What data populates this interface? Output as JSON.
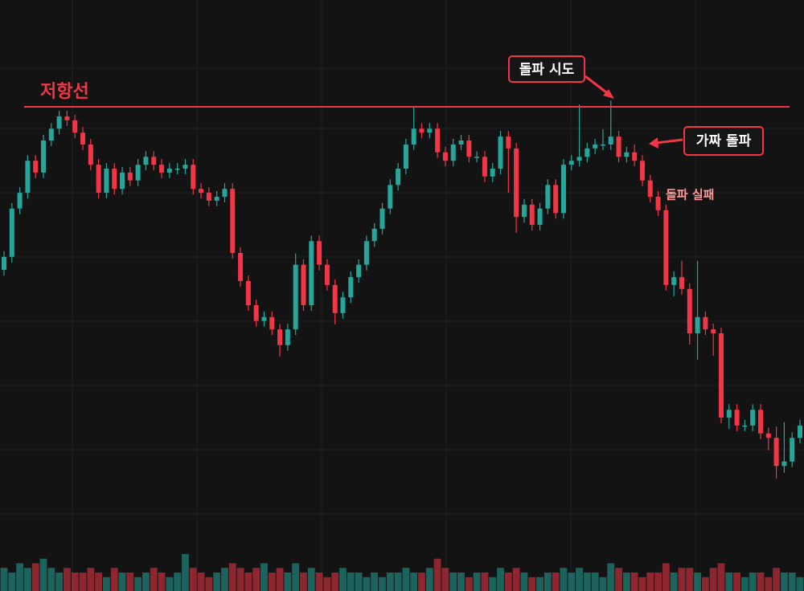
{
  "chart_data": {
    "type": "candlestick",
    "up_color": "#26a69a",
    "down_color": "#f23645",
    "grid": true,
    "ylim": [
      0,
      100
    ],
    "volume_ylim": [
      0,
      8
    ],
    "resistance": 81,
    "resistance_label": "저항선",
    "annotations": [
      {
        "text": "돌파 시도"
      },
      {
        "text": "가짜 돌파"
      },
      {
        "text": "돌파 실패"
      }
    ],
    "open": [
      52,
      54.3,
      62.9,
      65.7,
      71.4,
      69.3,
      75,
      77.1,
      79.3,
      78.6,
      76.4,
      74.3,
      70.7,
      65.7,
      70,
      66.4,
      69.3,
      67.9,
      70.7,
      72.1,
      70.7,
      69.3,
      70,
      70,
      70.7,
      66.4,
      65.7,
      64.3,
      65,
      66.4,
      55,
      50,
      45.7,
      42.9,
      43.6,
      41.4,
      38.6,
      41.4,
      52.9,
      45.7,
      57.1,
      52.9,
      49.3,
      44.3,
      47.1,
      50.7,
      52.9,
      57.1,
      59.3,
      62.9,
      67.1,
      70,
      74.3,
      77.1,
      76.4,
      77.1,
      72.9,
      71.4,
      74.3,
      75,
      72.1,
      72.1,
      68.6,
      70,
      75.7,
      73.6,
      61.4,
      63.6,
      60,
      62.9,
      67.1,
      62.1,
      70.7,
      71.4,
      72.1,
      73.6,
      74.3,
      74.3,
      75.7,
      72.1,
      72.9,
      71.4,
      67.9,
      65,
      62.6,
      49.3,
      50.7,
      48.6,
      40.7,
      43.6,
      41.4,
      40.7,
      25.7,
      27.1,
      24.3,
      24.3,
      27.1,
      22.9,
      22.1,
      17.1,
      17.9,
      22.1
    ],
    "high": [
      55.3,
      63.9,
      66.7,
      72.4,
      72.4,
      76,
      78.1,
      80.3,
      80.3,
      79.6,
      77.4,
      75.3,
      71.7,
      71,
      71,
      70.3,
      70.3,
      71.7,
      73.1,
      73.1,
      71.7,
      71,
      71,
      71.7,
      71.7,
      67.4,
      66.7,
      66,
      67.4,
      67.4,
      56,
      51,
      46.7,
      44.6,
      44.6,
      42.4,
      42.4,
      54.9,
      53.9,
      58.1,
      58.1,
      53.9,
      50.3,
      48.1,
      51.7,
      53.9,
      58.1,
      60.3,
      63.9,
      68.1,
      71,
      75.3,
      80.9,
      78.1,
      78.1,
      78.1,
      73.9,
      75.3,
      76,
      76,
      73.1,
      73.1,
      71,
      76.7,
      76.7,
      74.6,
      64.6,
      64.6,
      63.9,
      68.1,
      68.1,
      71.7,
      72.4,
      81.4,
      74.6,
      75.3,
      77,
      82.1,
      76.7,
      73.9,
      74.3,
      72.4,
      68.9,
      66,
      63.6,
      51.7,
      53.6,
      49.6,
      53.6,
      44.6,
      42.4,
      41.7,
      28.1,
      28.1,
      25.3,
      28.1,
      28.1,
      23.9,
      24.1,
      24.9,
      23.1,
      25.3
    ],
    "low": [
      51,
      53.3,
      61.9,
      64.7,
      68.3,
      68.3,
      74,
      76.1,
      77.6,
      75.4,
      73.3,
      69.7,
      64.7,
      64.7,
      65.4,
      65.4,
      66.9,
      66.9,
      69.7,
      69.7,
      68.3,
      68.3,
      69,
      69,
      65.4,
      64.7,
      63.3,
      63.3,
      64,
      54,
      49,
      44.7,
      41.9,
      41.9,
      40.4,
      36.6,
      37.6,
      40.4,
      44.7,
      44.7,
      51.9,
      48.3,
      42.3,
      43.3,
      46.1,
      49.7,
      51.9,
      56.1,
      58.3,
      61.9,
      66.1,
      69,
      73.3,
      75.4,
      75.4,
      71.9,
      70.4,
      70.4,
      73.3,
      71.1,
      71.1,
      67.6,
      67.6,
      69,
      65.7,
      58.6,
      60.4,
      59,
      59,
      61.9,
      61.1,
      61.1,
      69.7,
      70.4,
      71.1,
      72.6,
      73.3,
      73.3,
      71.1,
      71.1,
      70.4,
      66.9,
      64,
      61.6,
      48.3,
      47.3,
      47.6,
      38.7,
      36,
      40.4,
      36.7,
      24.7,
      23.7,
      23.3,
      23.3,
      23.3,
      21.9,
      19.9,
      14.9,
      15.9,
      16.9,
      21.1
    ],
    "close": [
      54.3,
      62.9,
      65.7,
      71.4,
      69.3,
      75,
      77.1,
      79.3,
      78.6,
      76.4,
      74.3,
      70.7,
      65.7,
      70,
      66.4,
      69.3,
      67.9,
      70.7,
      72.1,
      70.7,
      69.3,
      70,
      70,
      70.7,
      66.4,
      65.7,
      64.3,
      65,
      66.4,
      55,
      50,
      45.7,
      42.9,
      43.6,
      41.4,
      38.6,
      41.4,
      52.9,
      45.7,
      57.1,
      52.9,
      49.3,
      44.3,
      47.1,
      50.7,
      52.9,
      57.1,
      59.3,
      62.9,
      67.1,
      70,
      74.3,
      77.1,
      76.4,
      77.1,
      72.9,
      71.4,
      74.3,
      75,
      72.1,
      72.1,
      68.6,
      70,
      75.7,
      73.6,
      61.4,
      63.6,
      60,
      62.9,
      67.1,
      62.1,
      70.7,
      71.4,
      72.1,
      73.6,
      74.3,
      74.3,
      75.7,
      72.1,
      72.9,
      71.4,
      67.9,
      65,
      62.6,
      49.3,
      50.7,
      48.6,
      40.7,
      43.6,
      41.4,
      40.7,
      25.7,
      27.1,
      24.3,
      24.3,
      27.1,
      22.9,
      22.1,
      17.1,
      17.9,
      22.1,
      24.3
    ],
    "volume": [
      5,
      4,
      6,
      5,
      6,
      7,
      5,
      4,
      5,
      4,
      4,
      5,
      4,
      3,
      5,
      4,
      4,
      3,
      4,
      5,
      4,
      3,
      4,
      8,
      5,
      4,
      3,
      4,
      5,
      6,
      5,
      4,
      5,
      6,
      4,
      5,
      4,
      6,
      4,
      5,
      4,
      3,
      4,
      5,
      4,
      4,
      3,
      4,
      3,
      4,
      4,
      5,
      4,
      4,
      5,
      7,
      5,
      4,
      4,
      3,
      4,
      4,
      3,
      5,
      4,
      5,
      4,
      3,
      3,
      4,
      4,
      5,
      4,
      5,
      4,
      4,
      3,
      6,
      5,
      4,
      4,
      3,
      4,
      4,
      6,
      4,
      5,
      5,
      4,
      3,
      5,
      6,
      4,
      4,
      3,
      4,
      4,
      3,
      5,
      4,
      4,
      3
    ]
  }
}
